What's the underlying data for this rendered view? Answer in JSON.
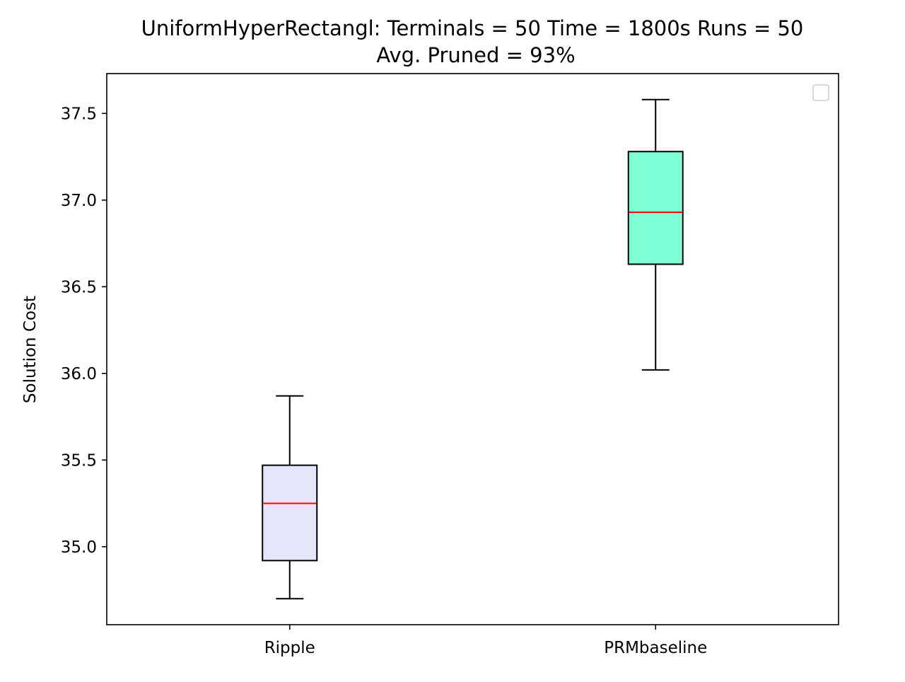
{
  "chart_data": {
    "type": "box",
    "title": "UniformHyperRectangl:  Terminals = 50  Time = 1800s  Runs = 50",
    "subtitle": "Avg. Pruned = 93%",
    "xlabel": "",
    "ylabel": "Solution Cost",
    "ylim": [
      34.55,
      37.73
    ],
    "yticks": [
      35.0,
      35.5,
      36.0,
      36.5,
      37.0,
      37.5
    ],
    "ytick_labels": [
      "35.0",
      "35.5",
      "36.0",
      "36.5",
      "37.0",
      "37.5"
    ],
    "categories": [
      "Ripple",
      "PRMbaseline"
    ],
    "boxes": [
      {
        "category": "Ripple",
        "whisker_low": 34.7,
        "q1": 34.92,
        "median": 35.25,
        "q3": 35.47,
        "whisker_high": 35.87,
        "fill": "#e6e6fa"
      },
      {
        "category": "PRMbaseline",
        "whisker_low": 36.02,
        "q1": 36.63,
        "median": 36.93,
        "q3": 37.28,
        "whisker_high": 37.58,
        "fill": "#7fffd4"
      }
    ],
    "median_color": "#ff0000",
    "grid": false,
    "legend": {
      "placement": "top-right",
      "entries": []
    }
  }
}
